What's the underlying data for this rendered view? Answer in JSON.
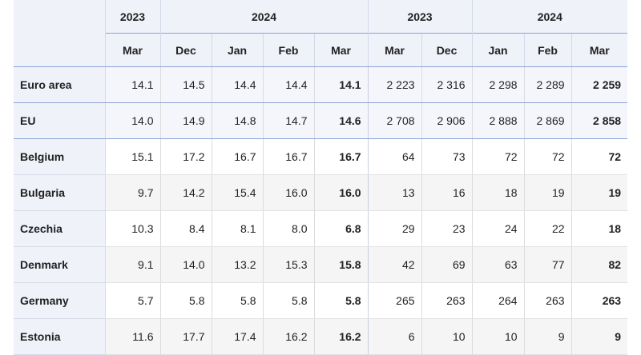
{
  "header": {
    "groups": [
      {
        "years": [
          "2023",
          "2024"
        ]
      },
      {
        "years": [
          "2023",
          "2024"
        ]
      }
    ],
    "months": [
      "Mar",
      "Dec",
      "Jan",
      "Feb",
      "Mar",
      "Mar",
      "Dec",
      "Jan",
      "Feb",
      "Mar"
    ]
  },
  "rows": [
    {
      "country": "Euro area",
      "values": [
        "14.1",
        "14.5",
        "14.4",
        "14.4",
        "14.1",
        "2 223",
        "2 316",
        "2 298",
        "2 289",
        "2 259"
      ]
    },
    {
      "country": "EU",
      "values": [
        "14.0",
        "14.9",
        "14.8",
        "14.7",
        "14.6",
        "2 708",
        "2 906",
        "2 888",
        "2 869",
        "2 858"
      ]
    },
    {
      "country": "Belgium",
      "values": [
        "15.1",
        "17.2",
        "16.7",
        "16.7",
        "16.7",
        "64",
        "73",
        "72",
        "72",
        "72"
      ]
    },
    {
      "country": "Bulgaria",
      "values": [
        "9.7",
        "14.2",
        "15.4",
        "16.0",
        "16.0",
        "13",
        "16",
        "18",
        "19",
        "19"
      ]
    },
    {
      "country": "Czechia",
      "values": [
        "10.3",
        "8.4",
        "8.1",
        "8.0",
        "6.8",
        "29",
        "23",
        "24",
        "22",
        "18"
      ]
    },
    {
      "country": "Denmark",
      "values": [
        "9.1",
        "14.0",
        "13.2",
        "15.3",
        "15.8",
        "42",
        "69",
        "63",
        "77",
        "82"
      ]
    },
    {
      "country": "Germany",
      "values": [
        "5.7",
        "5.8",
        "5.8",
        "5.8",
        "5.8",
        "265",
        "263",
        "264",
        "263",
        "263"
      ]
    },
    {
      "country": "Estonia",
      "values": [
        "11.6",
        "17.7",
        "17.4",
        "16.2",
        "16.2",
        "6",
        "10",
        "10",
        "9",
        "9"
      ]
    }
  ]
}
